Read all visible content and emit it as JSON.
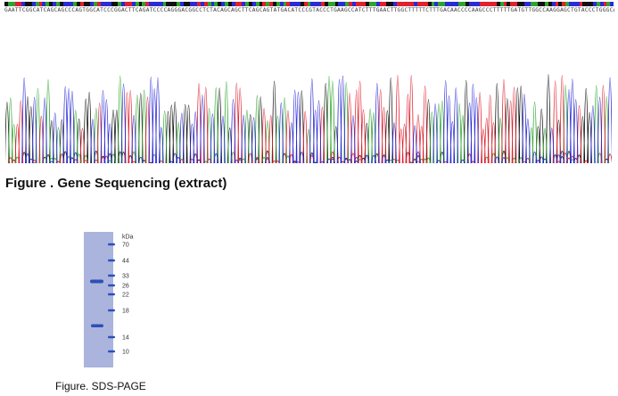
{
  "sequencing": {
    "sequence": "GAATTCGGCATCAGCAGCCCAGTGGCATCCCGGACTTCAGATCCCCAGGGACGGCCTCTACAGCAGCTTCAGCAGTATGACATCCCGTACCCTGAAGCCATCTTTGAACTTGGCTTTTTCTTTGACAACCCCAAGCCCTTTTTGATGTTGGCCAAGGAGCTGTACCCTGGGCACTAC",
    "caption": "Figure . Gene Sequencing (extract)",
    "base_colors": {
      "A": "#2fa52f",
      "C": "#2b2bd6",
      "G": "#111111",
      "T": "#e0212f"
    }
  },
  "sds_page": {
    "unit_label": "kDa",
    "markers": [
      "70",
      "44",
      "33",
      "26",
      "22",
      "18",
      "14",
      "10"
    ],
    "caption": "Figure. SDS-PAGE",
    "gel_color": "#aab4dd",
    "band_color": "#2e4fb8"
  }
}
